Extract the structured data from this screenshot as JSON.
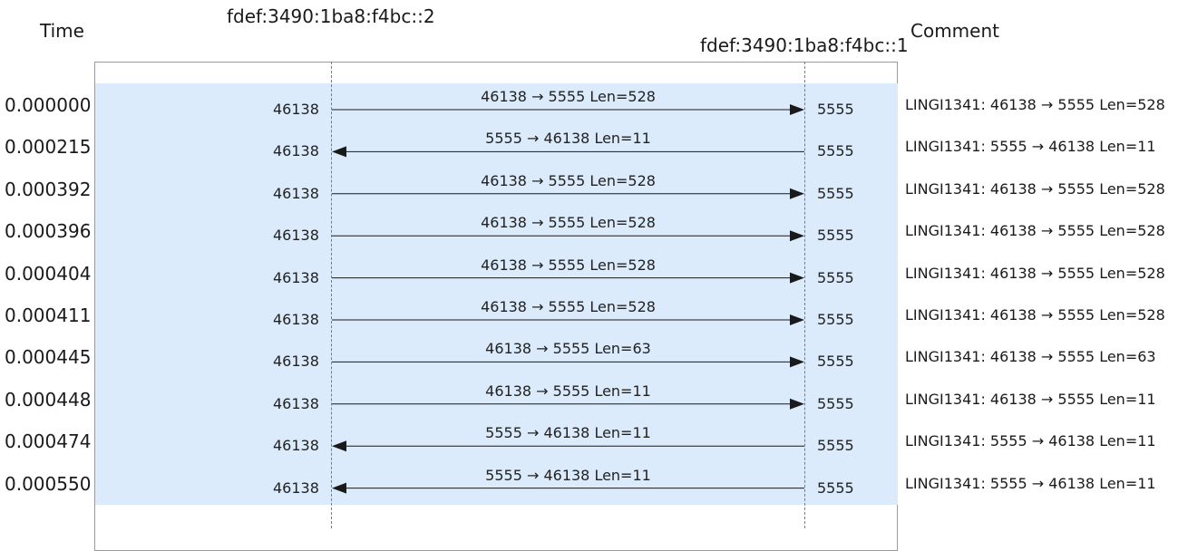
{
  "header": {
    "time_label": "Time",
    "comment_label": "Comment",
    "host_left": "fdef:3490:1ba8:f4bc::2",
    "host_right": "fdef:3490:1ba8:f4bc::1"
  },
  "rows": [
    {
      "time": "0.000000",
      "left_port": "46138",
      "right_port": "5555",
      "direction": "right",
      "label": "46138 → 5555 Len=528",
      "comment": "LINGI1341: 46138 → 5555 Len=528"
    },
    {
      "time": "0.000215",
      "left_port": "46138",
      "right_port": "5555",
      "direction": "left",
      "label": "5555 → 46138 Len=11",
      "comment": "LINGI1341: 5555 → 46138 Len=11"
    },
    {
      "time": "0.000392",
      "left_port": "46138",
      "right_port": "5555",
      "direction": "right",
      "label": "46138 → 5555 Len=528",
      "comment": "LINGI1341: 46138 → 5555 Len=528"
    },
    {
      "time": "0.000396",
      "left_port": "46138",
      "right_port": "5555",
      "direction": "right",
      "label": "46138 → 5555 Len=528",
      "comment": "LINGI1341: 46138 → 5555 Len=528"
    },
    {
      "time": "0.000404",
      "left_port": "46138",
      "right_port": "5555",
      "direction": "right",
      "label": "46138 → 5555 Len=528",
      "comment": "LINGI1341: 46138 → 5555 Len=528"
    },
    {
      "time": "0.000411",
      "left_port": "46138",
      "right_port": "5555",
      "direction": "right",
      "label": "46138 → 5555 Len=528",
      "comment": "LINGI1341: 46138 → 5555 Len=528"
    },
    {
      "time": "0.000445",
      "left_port": "46138",
      "right_port": "5555",
      "direction": "right",
      "label": "46138 → 5555 Len=63",
      "comment": "LINGI1341: 46138 → 5555 Len=63"
    },
    {
      "time": "0.000448",
      "left_port": "46138",
      "right_port": "5555",
      "direction": "right",
      "label": "46138 → 5555 Len=11",
      "comment": "LINGI1341: 46138 → 5555 Len=11"
    },
    {
      "time": "0.000474",
      "left_port": "46138",
      "right_port": "5555",
      "direction": "left",
      "label": "5555 → 46138 Len=11",
      "comment": "LINGI1341: 5555 → 46138 Len=11"
    },
    {
      "time": "0.000550",
      "left_port": "46138",
      "right_port": "5555",
      "direction": "left",
      "label": "5555 → 46138 Len=11",
      "comment": "LINGI1341: 5555 → 46138 Len=11"
    }
  ],
  "colors": {
    "band": "#dbebfb",
    "arrow": "#1a1a1a",
    "lifeline": "#7a7a7a"
  }
}
